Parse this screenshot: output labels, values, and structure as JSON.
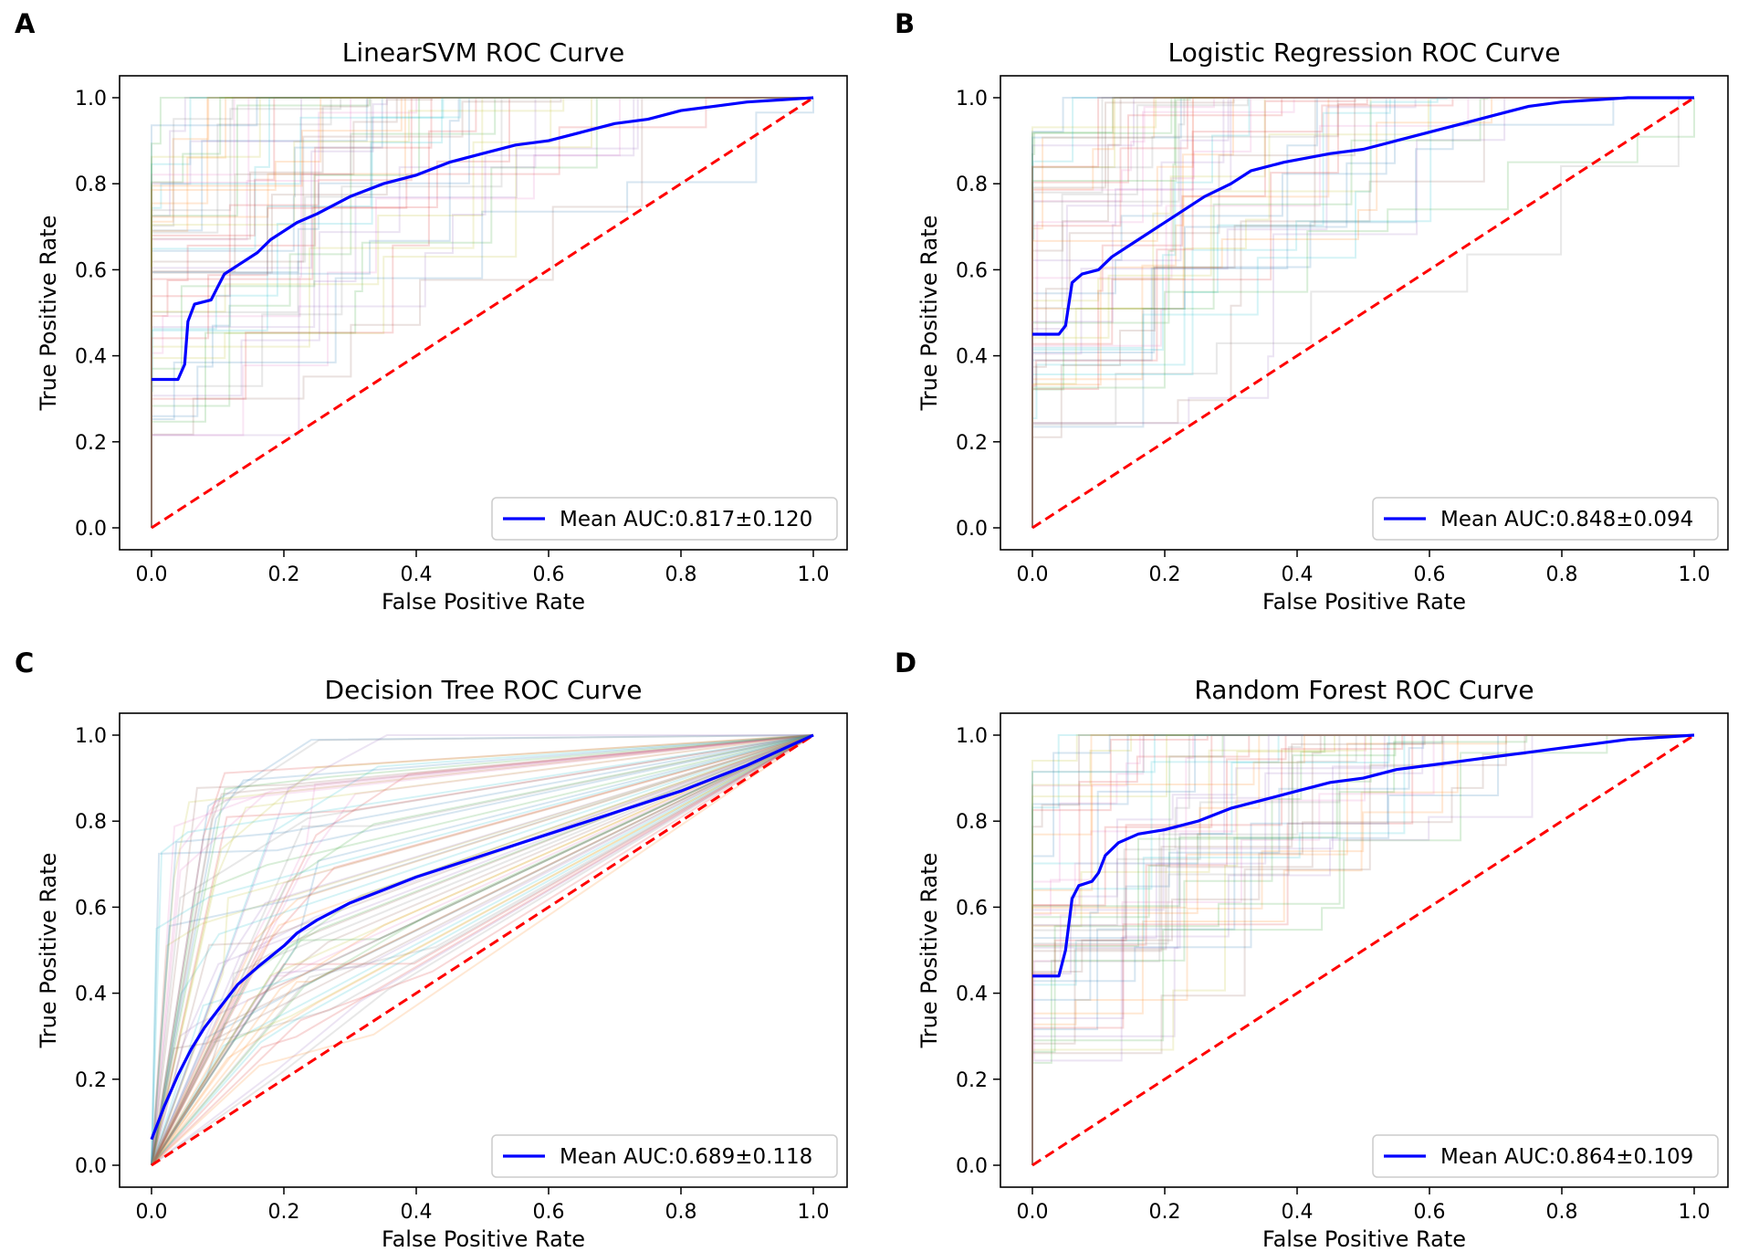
{
  "chart_data": [
    {
      "type": "line",
      "panel_label": "A",
      "title": "LinearSVM ROC Curve",
      "xlabel": "False Positive Rate",
      "ylabel": "True Positive Rate",
      "xlim": [
        0,
        1
      ],
      "ylim": [
        0,
        1
      ],
      "xticks": [
        "0.0",
        "0.2",
        "0.4",
        "0.6",
        "0.8",
        "1.0"
      ],
      "yticks": [
        "0.0",
        "0.2",
        "0.4",
        "0.6",
        "0.8",
        "1.0"
      ],
      "legend": "Mean AUC:0.817±0.120",
      "legend_position": "lower-right",
      "mean_curve": {
        "name": "Mean ROC",
        "color": "#0000ff",
        "x": [
          0,
          0.04,
          0.05,
          0.055,
          0.065,
          0.09,
          0.1,
          0.11,
          0.13,
          0.16,
          0.18,
          0.22,
          0.25,
          0.3,
          0.35,
          0.4,
          0.45,
          0.5,
          0.55,
          0.6,
          0.65,
          0.7,
          0.75,
          0.8,
          0.85,
          0.9,
          0.95,
          1.0
        ],
        "y": [
          0.345,
          0.345,
          0.38,
          0.48,
          0.52,
          0.53,
          0.56,
          0.59,
          0.61,
          0.64,
          0.67,
          0.71,
          0.73,
          0.77,
          0.8,
          0.82,
          0.85,
          0.87,
          0.89,
          0.9,
          0.92,
          0.94,
          0.95,
          0.97,
          0.98,
          0.99,
          0.995,
          1.0
        ]
      },
      "chance_line": {
        "color": "#ff0000",
        "x": [
          0,
          1
        ],
        "y": [
          0,
          1
        ]
      },
      "fold_style": "many-faint-steps"
    },
    {
      "type": "line",
      "panel_label": "B",
      "title": "Logistic Regression ROC Curve",
      "xlabel": "False Positive Rate",
      "ylabel": "True Positive Rate",
      "xlim": [
        0,
        1
      ],
      "ylim": [
        0,
        1
      ],
      "xticks": [
        "0.0",
        "0.2",
        "0.4",
        "0.6",
        "0.8",
        "1.0"
      ],
      "yticks": [
        "0.0",
        "0.2",
        "0.4",
        "0.6",
        "0.8",
        "1.0"
      ],
      "legend": "Mean AUC:0.848±0.094",
      "legend_position": "lower-right",
      "mean_curve": {
        "name": "Mean ROC",
        "color": "#0000ff",
        "x": [
          0,
          0.04,
          0.05,
          0.06,
          0.075,
          0.1,
          0.12,
          0.15,
          0.18,
          0.22,
          0.26,
          0.3,
          0.33,
          0.38,
          0.45,
          0.5,
          0.55,
          0.6,
          0.65,
          0.7,
          0.75,
          0.8,
          0.85,
          0.9,
          0.95,
          1.0
        ],
        "y": [
          0.45,
          0.45,
          0.47,
          0.57,
          0.59,
          0.6,
          0.63,
          0.66,
          0.69,
          0.73,
          0.77,
          0.8,
          0.83,
          0.85,
          0.87,
          0.88,
          0.9,
          0.92,
          0.94,
          0.96,
          0.98,
          0.99,
          0.995,
          1.0,
          1.0,
          1.0
        ]
      },
      "chance_line": {
        "color": "#ff0000",
        "x": [
          0,
          1
        ],
        "y": [
          0,
          1
        ]
      },
      "fold_style": "many-faint-steps"
    },
    {
      "type": "line",
      "panel_label": "C",
      "title": "Decision Tree ROC Curve",
      "xlabel": "False Positive Rate",
      "ylabel": "True Positive Rate",
      "xlim": [
        0,
        1
      ],
      "ylim": [
        0,
        1
      ],
      "xticks": [
        "0.0",
        "0.2",
        "0.4",
        "0.6",
        "0.8",
        "1.0"
      ],
      "yticks": [
        "0.0",
        "0.2",
        "0.4",
        "0.6",
        "0.8",
        "1.0"
      ],
      "legend": "Mean AUC:0.689±0.118",
      "legend_position": "lower-right",
      "mean_curve": {
        "name": "Mean ROC",
        "color": "#0000ff",
        "x": [
          0,
          0.02,
          0.04,
          0.06,
          0.08,
          0.1,
          0.13,
          0.16,
          0.2,
          0.22,
          0.25,
          0.3,
          0.35,
          0.4,
          0.5,
          0.6,
          0.7,
          0.8,
          0.9,
          1.0
        ],
        "y": [
          0.06,
          0.14,
          0.21,
          0.27,
          0.32,
          0.36,
          0.42,
          0.46,
          0.51,
          0.54,
          0.57,
          0.61,
          0.64,
          0.67,
          0.72,
          0.77,
          0.82,
          0.87,
          0.93,
          1.0
        ]
      },
      "chance_line": {
        "color": "#ff0000",
        "x": [
          0,
          1
        ],
        "y": [
          0,
          1
        ]
      },
      "fold_style": "many-faint-lines"
    },
    {
      "type": "line",
      "panel_label": "D",
      "title": "Random Forest ROC Curve",
      "xlabel": "False Positive Rate",
      "ylabel": "True Positive Rate",
      "xlim": [
        0,
        1
      ],
      "ylim": [
        0,
        1
      ],
      "xticks": [
        "0.0",
        "0.2",
        "0.4",
        "0.6",
        "0.8",
        "1.0"
      ],
      "yticks": [
        "0.0",
        "0.2",
        "0.4",
        "0.6",
        "0.8",
        "1.0"
      ],
      "legend": "Mean AUC:0.864±0.109",
      "legend_position": "lower-right",
      "mean_curve": {
        "name": "Mean ROC",
        "color": "#0000ff",
        "x": [
          0,
          0.04,
          0.05,
          0.06,
          0.07,
          0.09,
          0.1,
          0.11,
          0.13,
          0.16,
          0.2,
          0.25,
          0.3,
          0.35,
          0.4,
          0.45,
          0.5,
          0.55,
          0.6,
          0.65,
          0.7,
          0.75,
          0.8,
          0.85,
          0.9,
          0.95,
          1.0
        ],
        "y": [
          0.44,
          0.44,
          0.5,
          0.62,
          0.65,
          0.66,
          0.68,
          0.72,
          0.75,
          0.77,
          0.78,
          0.8,
          0.83,
          0.85,
          0.87,
          0.89,
          0.9,
          0.92,
          0.93,
          0.94,
          0.95,
          0.96,
          0.97,
          0.98,
          0.99,
          0.995,
          1.0
        ]
      },
      "chance_line": {
        "color": "#ff0000",
        "x": [
          0,
          1
        ],
        "y": [
          0,
          1
        ]
      },
      "fold_style": "many-faint-steps"
    }
  ]
}
